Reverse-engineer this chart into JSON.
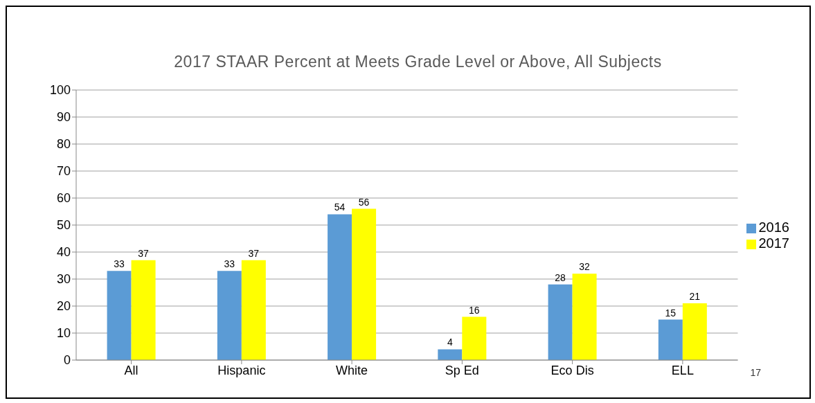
{
  "chart_data": {
    "type": "bar",
    "title": "2017 STAAR Percent at Meets Grade Level or Above, All Subjects",
    "categories": [
      "All",
      "Hispanic",
      "White",
      "Sp Ed",
      "Eco Dis",
      "ELL"
    ],
    "series": [
      {
        "name": "2016",
        "color": "#5b9bd5",
        "values": [
          33,
          33,
          54,
          4,
          28,
          15
        ]
      },
      {
        "name": "2017",
        "color": "#ffff00",
        "values": [
          37,
          37,
          56,
          16,
          32,
          21
        ]
      }
    ],
    "ylim": [
      0,
      100
    ],
    "yticks": [
      0,
      10,
      20,
      30,
      40,
      50,
      60,
      70,
      80,
      90,
      100
    ],
    "grid": "y",
    "legend": "right",
    "data_labels": true,
    "annotations": [
      "17"
    ]
  }
}
